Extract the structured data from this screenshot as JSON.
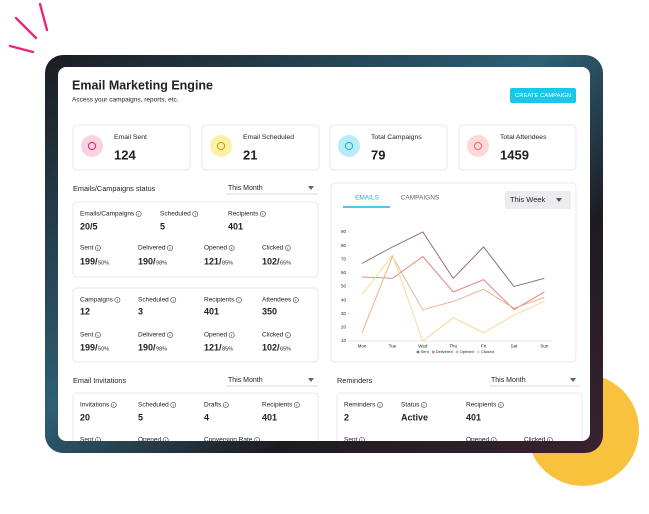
{
  "header": {
    "title": "Email Marketing Engine",
    "subtitle": "Access your campaigns, reports, etc.",
    "button": "CREATE CAMPAIGN"
  },
  "stats": [
    {
      "label": "Email Sent",
      "value": 124
    },
    {
      "label": "Email Scheduled",
      "value": 21
    },
    {
      "label": "Total Campaigns",
      "value": 79
    },
    {
      "label": "Total Attendees",
      "value": 1459
    }
  ],
  "status": {
    "title": "Emails/Campaigns status",
    "filter": "This Month",
    "emails": {
      "top": [
        {
          "label": "Emails/Campaigns",
          "value": "20/5"
        },
        {
          "label": "Scheduled",
          "value": 5
        },
        {
          "label": "Recipients",
          "value": 401
        }
      ],
      "bottom": [
        {
          "label": "Sent",
          "value": "199/",
          "rate": "50%"
        },
        {
          "label": "Delivered",
          "value": "190/",
          "rate": "98%"
        },
        {
          "label": "Opened",
          "value": "121/",
          "rate": "85%"
        },
        {
          "label": "Clicked",
          "value": "102/",
          "rate": "65%"
        }
      ]
    },
    "campaigns": {
      "top": [
        {
          "label": "Campaigns",
          "value": 12
        },
        {
          "label": "Scheduled",
          "value": 3
        },
        {
          "label": "Recipients",
          "value": 401
        },
        {
          "label": "Attendees",
          "value": 350
        }
      ],
      "bottom": [
        {
          "label": "Sent",
          "value": "199/",
          "rate": "50%"
        },
        {
          "label": "Delivered",
          "value": "190/",
          "rate": "98%"
        },
        {
          "label": "Opened",
          "value": "121/",
          "rate": "85%"
        },
        {
          "label": "Clicked",
          "value": "102/",
          "rate": "65%"
        }
      ]
    }
  },
  "chart_panel": {
    "tabs": [
      "EMAILS",
      "CAMPAIGNS"
    ],
    "filter": "This Week"
  },
  "chart_data": {
    "type": "line",
    "categories": [
      "Mon",
      "Tue",
      "Wed",
      "Thu",
      "Fri",
      "Sat",
      "Sun"
    ],
    "series": [
      {
        "name": "Sent",
        "color": "#8c5f6c",
        "values": [
          67,
          79,
          90,
          56,
          79,
          50,
          56
        ]
      },
      {
        "name": "Delivered",
        "color": "#e27b74",
        "values": [
          57,
          56,
          72,
          46,
          55,
          33,
          46
        ]
      },
      {
        "name": "Opened",
        "color": "#f0a985",
        "values": [
          16,
          72,
          33,
          39,
          48,
          34,
          42
        ]
      },
      {
        "name": "Clicked",
        "color": "#f6d592",
        "values": [
          44,
          73,
          10,
          27,
          16,
          29,
          39
        ]
      }
    ],
    "ylim": [
      10,
      90
    ],
    "yticks": [
      10,
      20,
      30,
      40,
      50,
      60,
      70,
      80,
      90
    ]
  },
  "invitations": {
    "title": "Email Invitations",
    "filter": "This Month",
    "top": [
      {
        "label": "Invitations",
        "value": 20
      },
      {
        "label": "Scheduled",
        "value": 5
      },
      {
        "label": "Drafts",
        "value": 4
      },
      {
        "label": "Recipients",
        "value": 401
      }
    ],
    "bottom": [
      {
        "label": "Sent"
      },
      {
        "label": "Opened"
      },
      {
        "label": "Conversion Rate"
      }
    ]
  },
  "reminders": {
    "title": "Reminders",
    "filter": "This Month",
    "top": [
      {
        "label": "Reminders",
        "value": 2
      },
      {
        "label": "Status",
        "value": "Active"
      },
      {
        "label": "Recipients",
        "value": 401
      }
    ],
    "bottom": [
      {
        "label": "Sent"
      },
      {
        "label": "Opened"
      },
      {
        "label": "Clicked"
      }
    ]
  }
}
